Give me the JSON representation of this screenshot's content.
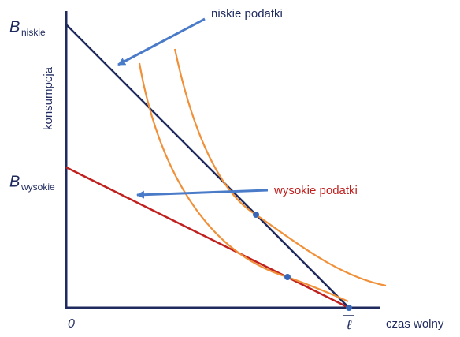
{
  "axes": {
    "y_label": "konsumpcja",
    "x_label": "czas wolny",
    "origin": "0",
    "x_end": "ℓ"
  },
  "intercepts": [
    {
      "symbol": "B",
      "subscript": "niskie"
    },
    {
      "symbol": "B",
      "subscript": "wysokie"
    }
  ],
  "annotations": [
    {
      "text": "niskie podatki",
      "color": "#1f2a5e"
    },
    {
      "text": "wysokie podatki",
      "color": "#c0201e"
    }
  ]
}
